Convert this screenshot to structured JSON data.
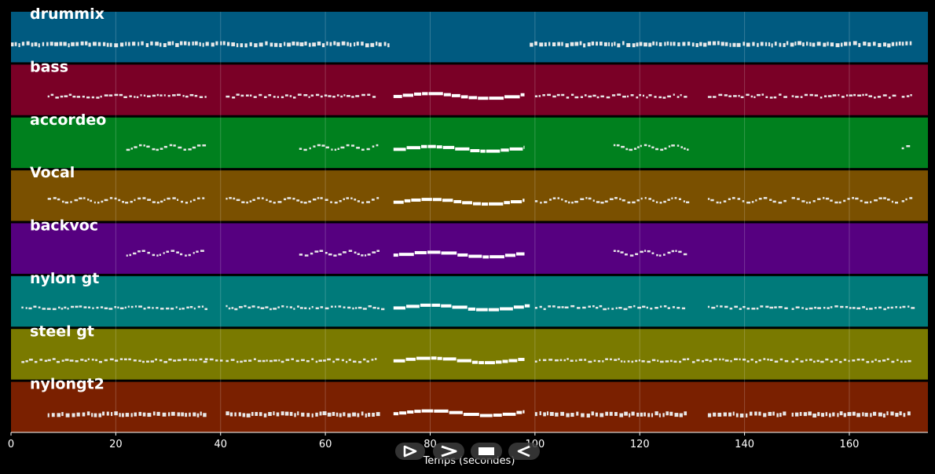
{
  "chart_data": {
    "type": "piano-roll",
    "xlabel": "Temps (secondes)",
    "xlim": [
      0,
      175
    ],
    "x_ticks": [
      0,
      20,
      40,
      60,
      80,
      100,
      120,
      140,
      160
    ],
    "grid": true,
    "tracks": [
      {
        "name": "drummix",
        "color": "#005a80",
        "segments": [
          [
            0,
            72,
            "dense"
          ],
          [
            99,
            172,
            "dense"
          ]
        ]
      },
      {
        "name": "bass",
        "color": "#7a0026",
        "segments": [
          [
            7,
            37,
            "line"
          ],
          [
            41,
            70,
            "line"
          ],
          [
            73,
            98,
            "block"
          ],
          [
            100,
            129,
            "line"
          ],
          [
            133,
            148,
            "line"
          ],
          [
            149,
            169,
            "line"
          ],
          [
            170,
            172,
            "line"
          ]
        ]
      },
      {
        "name": "accordeo",
        "color": "#00801e",
        "segments": [
          [
            22,
            37,
            "wave"
          ],
          [
            55,
            70,
            "wave"
          ],
          [
            73,
            98,
            "block"
          ],
          [
            115,
            129,
            "wave"
          ],
          [
            170,
            172,
            "wave"
          ]
        ]
      },
      {
        "name": "Vocal",
        "color": "#7a5000",
        "segments": [
          [
            7,
            37,
            "wave"
          ],
          [
            41,
            70,
            "wave"
          ],
          [
            73,
            98,
            "block"
          ],
          [
            100,
            129,
            "wave"
          ],
          [
            133,
            148,
            "wave"
          ],
          [
            149,
            169,
            "wave"
          ],
          [
            170,
            172,
            "wave"
          ]
        ]
      },
      {
        "name": "backvoc",
        "color": "#560080",
        "segments": [
          [
            22,
            37,
            "wave"
          ],
          [
            55,
            70,
            "wave"
          ],
          [
            73,
            98,
            "block"
          ],
          [
            115,
            129,
            "wave"
          ]
        ]
      },
      {
        "name": "nylon gt",
        "color": "#007a7a",
        "segments": [
          [
            2,
            37,
            "line"
          ],
          [
            41,
            71,
            "line"
          ],
          [
            73,
            99,
            "block"
          ],
          [
            100,
            129,
            "line"
          ],
          [
            133,
            148,
            "line"
          ],
          [
            149,
            172,
            "line"
          ]
        ]
      },
      {
        "name": "steel gt",
        "color": "#7a7a00",
        "segments": [
          [
            2,
            7,
            "line"
          ],
          [
            7,
            37,
            "line"
          ],
          [
            37,
            40,
            "line"
          ],
          [
            41,
            70,
            "line"
          ],
          [
            73,
            98,
            "block"
          ],
          [
            100,
            129,
            "line"
          ],
          [
            130,
            148,
            "line"
          ],
          [
            149,
            172,
            "line"
          ]
        ]
      },
      {
        "name": "nylongt2",
        "color": "#7a2000",
        "segments": [
          [
            7,
            37,
            "dense"
          ],
          [
            41,
            70,
            "dense"
          ],
          [
            73,
            98,
            "block"
          ],
          [
            100,
            129,
            "dense"
          ],
          [
            133,
            148,
            "dense"
          ],
          [
            149,
            172,
            "dense"
          ]
        ]
      }
    ]
  },
  "controls": [
    {
      "name": "play-button",
      "icon": "play-icon"
    },
    {
      "name": "forward-button",
      "icon": "forward-icon"
    },
    {
      "name": "stop-button",
      "icon": "stop-icon"
    },
    {
      "name": "back-button",
      "icon": "back-icon"
    }
  ]
}
